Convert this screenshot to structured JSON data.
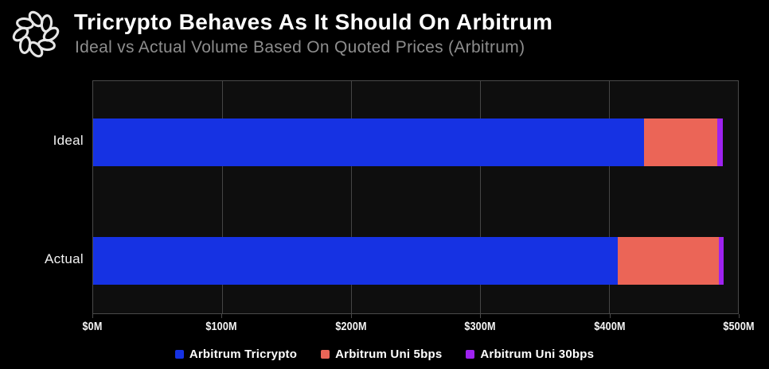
{
  "header": {
    "title": "Tricrypto Behaves As It Should On Arbitrum",
    "subtitle": "Ideal vs Actual Volume Based On Quoted Prices (Arbitrum)",
    "logo_icon": "knot-ring"
  },
  "chart_data": {
    "type": "bar",
    "orientation": "horizontal",
    "stacked": true,
    "title": "Tricrypto Behaves As It Should On Arbitrum",
    "subtitle": "Ideal vs Actual Volume Based On Quoted Prices (Arbitrum)",
    "categories": [
      "Ideal",
      "Actual"
    ],
    "series": [
      {
        "name": "Arbitrum Tricrypto",
        "color": "#1632e3",
        "values": [
          427,
          407
        ]
      },
      {
        "name": "Arbitrum Uni 5bps",
        "color": "#eb6557",
        "values": [
          57,
          78
        ]
      },
      {
        "name": "Arbitrum Uni 30bps",
        "color": "#9e22f0",
        "values": [
          4,
          4
        ]
      }
    ],
    "x_ticks": [
      "$0M",
      "$100M",
      "$200M",
      "$300M",
      "$400M",
      "$500M"
    ],
    "xlim": [
      0,
      500
    ],
    "xlabel": "",
    "ylabel": "",
    "grid": "vertical-only",
    "legend_position": "bottom",
    "background_color": "#000000",
    "plot_background_color": "#0e0e0e",
    "grid_color": "#4a4a4a"
  }
}
